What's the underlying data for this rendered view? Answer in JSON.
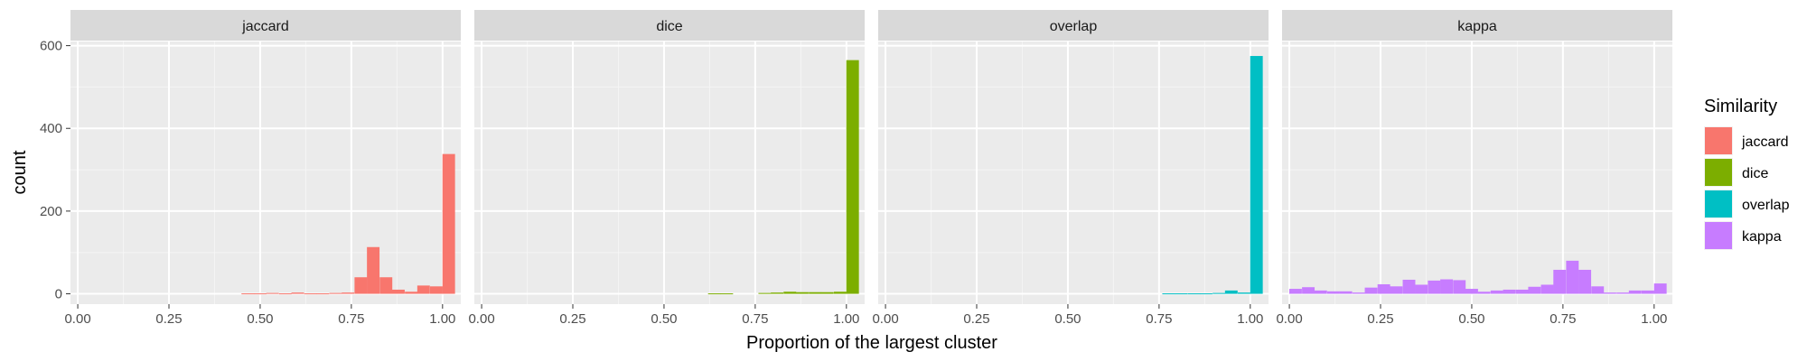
{
  "chart_data": {
    "type": "bar",
    "subtype": "faceted-histogram",
    "xlabel": "Proportion of the largest cluster",
    "ylabel": "count",
    "xlim": [
      -0.02,
      1.05
    ],
    "ylim": [
      -25,
      610
    ],
    "x_ticks": [
      0,
      0.25,
      0.5,
      0.75,
      1.0
    ],
    "x_tick_labels": [
      "0.00",
      "0.25",
      "0.50",
      "0.75",
      "1.00"
    ],
    "y_ticks": [
      0,
      200,
      400,
      600
    ],
    "y_tick_labels": [
      "0",
      "200",
      "400",
      "600"
    ],
    "bin_width": 0.0345,
    "grid": true,
    "legend": {
      "title": "Similarity",
      "placement": "right",
      "entries": [
        {
          "label": "jaccard",
          "color": "#F8766D"
        },
        {
          "label": "dice",
          "color": "#7CAE00"
        },
        {
          "label": "overlap",
          "color": "#00BFC4"
        },
        {
          "label": "kappa",
          "color": "#C77CFF"
        }
      ]
    },
    "panels": [
      {
        "name": "jaccard",
        "color": "#F8766D",
        "bins": [
          {
            "x": 0.466,
            "count": 1
          },
          {
            "x": 0.5,
            "count": 1
          },
          {
            "x": 0.534,
            "count": 2
          },
          {
            "x": 0.569,
            "count": 1
          },
          {
            "x": 0.603,
            "count": 3
          },
          {
            "x": 0.638,
            "count": 1
          },
          {
            "x": 0.672,
            "count": 1
          },
          {
            "x": 0.707,
            "count": 2
          },
          {
            "x": 0.741,
            "count": 3
          },
          {
            "x": 0.776,
            "count": 40
          },
          {
            "x": 0.81,
            "count": 113
          },
          {
            "x": 0.845,
            "count": 40
          },
          {
            "x": 0.879,
            "count": 10
          },
          {
            "x": 0.914,
            "count": 5
          },
          {
            "x": 0.948,
            "count": 20
          },
          {
            "x": 0.983,
            "count": 18
          },
          {
            "x": 1.017,
            "count": 338
          }
        ]
      },
      {
        "name": "dice",
        "color": "#7CAE00",
        "bins": [
          {
            "x": 0.638,
            "count": 1
          },
          {
            "x": 0.672,
            "count": 1
          },
          {
            "x": 0.776,
            "count": 2
          },
          {
            "x": 0.81,
            "count": 3
          },
          {
            "x": 0.845,
            "count": 5
          },
          {
            "x": 0.879,
            "count": 4
          },
          {
            "x": 0.914,
            "count": 4
          },
          {
            "x": 0.948,
            "count": 4
          },
          {
            "x": 0.983,
            "count": 5
          },
          {
            "x": 1.017,
            "count": 565
          }
        ]
      },
      {
        "name": "overlap",
        "color": "#00BFC4",
        "bins": [
          {
            "x": 0.776,
            "count": 1
          },
          {
            "x": 0.81,
            "count": 1
          },
          {
            "x": 0.845,
            "count": 1
          },
          {
            "x": 0.879,
            "count": 1
          },
          {
            "x": 0.914,
            "count": 2
          },
          {
            "x": 0.948,
            "count": 8
          },
          {
            "x": 0.983,
            "count": 3
          },
          {
            "x": 1.017,
            "count": 575
          }
        ]
      },
      {
        "name": "kappa",
        "color": "#C77CFF",
        "bins": [
          {
            "x": 0.017,
            "count": 12
          },
          {
            "x": 0.052,
            "count": 16
          },
          {
            "x": 0.086,
            "count": 8
          },
          {
            "x": 0.121,
            "count": 6
          },
          {
            "x": 0.155,
            "count": 6
          },
          {
            "x": 0.19,
            "count": 3
          },
          {
            "x": 0.224,
            "count": 15
          },
          {
            "x": 0.259,
            "count": 23
          },
          {
            "x": 0.293,
            "count": 18
          },
          {
            "x": 0.328,
            "count": 34
          },
          {
            "x": 0.362,
            "count": 22
          },
          {
            "x": 0.397,
            "count": 32
          },
          {
            "x": 0.431,
            "count": 35
          },
          {
            "x": 0.466,
            "count": 33
          },
          {
            "x": 0.5,
            "count": 12
          },
          {
            "x": 0.534,
            "count": 5
          },
          {
            "x": 0.569,
            "count": 8
          },
          {
            "x": 0.603,
            "count": 10
          },
          {
            "x": 0.638,
            "count": 10
          },
          {
            "x": 0.672,
            "count": 17
          },
          {
            "x": 0.707,
            "count": 22
          },
          {
            "x": 0.741,
            "count": 58
          },
          {
            "x": 0.776,
            "count": 80
          },
          {
            "x": 0.81,
            "count": 58
          },
          {
            "x": 0.845,
            "count": 18
          },
          {
            "x": 0.879,
            "count": 3
          },
          {
            "x": 0.914,
            "count": 3
          },
          {
            "x": 0.948,
            "count": 8
          },
          {
            "x": 0.983,
            "count": 8
          },
          {
            "x": 1.017,
            "count": 25
          }
        ]
      }
    ]
  }
}
